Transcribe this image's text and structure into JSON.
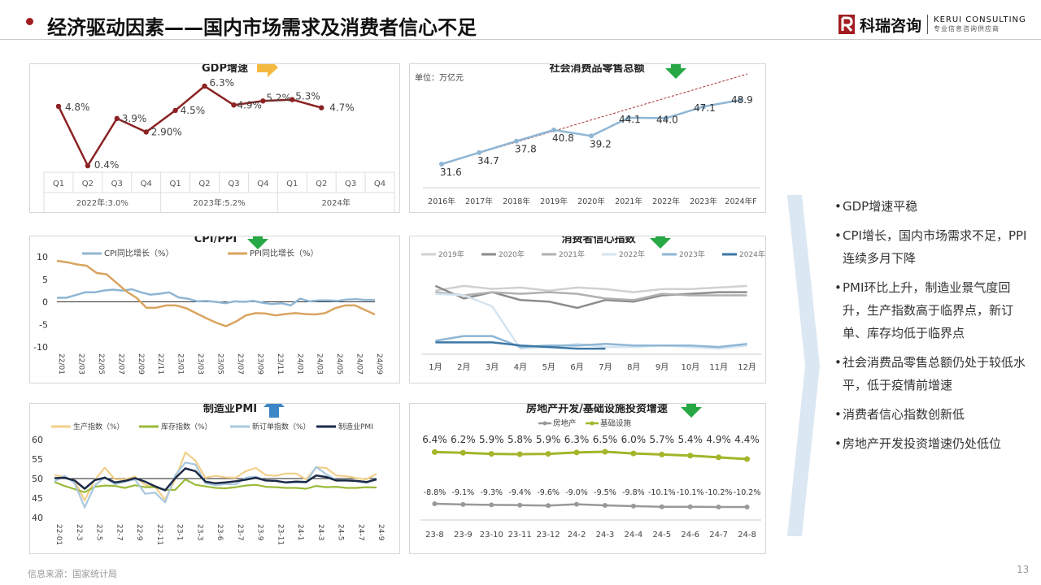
{
  "header": {
    "title": "经济驱动因素——国内市场需求及消费者信心不足",
    "logo_cn": "科瑞咨询",
    "logo_en": "KERUI CONSULTING",
    "logo_sub": "专业信息咨询供应商"
  },
  "footer": {
    "source": "信息来源：国家统计局",
    "page": "13"
  },
  "colors": {
    "accent": "#a11d21",
    "green_arrow": "#27a844",
    "blue_arrow": "#3d86c6",
    "yellow_arrow": "#f5b942"
  },
  "indicators": {
    "gdp": "yellow-right-arrow",
    "retail": "green-down-arrow",
    "cpi": "green-down-arrow",
    "confidence": "green-down-arrow",
    "pmi": "blue-up-arrow",
    "invest": "green-down-arrow"
  },
  "bullets": [
    "GDP增速平稳",
    "CPI增长，国内市场需求不足，PPI连续多月下降",
    "PMI环比上升，制造业景气度回升，生产指数高于临界点，新订单、库存均低于临界点",
    "社会消费品零售总额仍处于较低水平，低于疫情前增速",
    "消费者信心指数创新低",
    "房地产开发投资增速仍处低位"
  ],
  "chart_data": [
    {
      "id": "gdp",
      "type": "line",
      "title": "GDP增速",
      "categories": [
        "Q1",
        "Q2",
        "Q3",
        "Q4",
        "Q1",
        "Q2",
        "Q3",
        "Q4",
        "Q1",
        "Q2",
        "Q3",
        "Q4"
      ],
      "groups": [
        "2022年:3.0%",
        "2023年:5.2%",
        "2024年"
      ],
      "values": [
        4.8,
        0.4,
        3.9,
        2.9,
        4.5,
        6.3,
        4.9,
        5.2,
        5.3,
        4.7,
        null,
        null
      ],
      "labels": [
        "4.8%",
        "0.4%",
        "3.9%",
        "2.90%",
        "4.5%",
        "6.3%",
        "4.9%",
        "5.2%",
        "5.3%",
        "4.7%"
      ],
      "color": "#8b2323"
    },
    {
      "id": "retail",
      "type": "line",
      "title": "社会消费品零售总额",
      "unit_label": "单位：万亿元",
      "categories": [
        "2016年",
        "2017年",
        "2018年",
        "2019年",
        "2020年",
        "2021年",
        "2022年",
        "2023年",
        "2024年F"
      ],
      "values": [
        31.6,
        34.7,
        37.8,
        40.8,
        39.2,
        44.1,
        44.0,
        47.1,
        48.9
      ],
      "labels": [
        "31.6",
        "34.7",
        "37.8",
        "40.8",
        "39.2",
        "44.1",
        "44.0",
        "47.1",
        "48.9"
      ],
      "color": "#8fb6d4"
    },
    {
      "id": "cpi",
      "type": "line",
      "title": "CPI/PPI",
      "ylim": [
        -10,
        10
      ],
      "yticks": [
        "10",
        "5",
        "0",
        "-5",
        "-10"
      ],
      "xticks": [
        "22/01",
        "22/03",
        "22/05",
        "22/07",
        "22/09",
        "22/11",
        "23/01",
        "23/03",
        "23/05",
        "23/07",
        "23/09",
        "23/11",
        "24/01",
        "24/03",
        "24/05",
        "24/07",
        "24/09"
      ],
      "series": [
        {
          "name": "CPI同比增长（%）",
          "color": "#8fb6d4",
          "values": [
            0.9,
            0.9,
            1.5,
            2.1,
            2.1,
            2.5,
            2.7,
            2.5,
            2.8,
            2.1,
            1.6,
            1.8,
            2.1,
            1.0,
            0.7,
            0.1,
            0.2,
            0.0,
            -0.3,
            0.1,
            0.0,
            0.2,
            -0.2,
            -0.5,
            -0.3,
            -0.8,
            0.7,
            0.1,
            0.3,
            0.3,
            0.2,
            0.5,
            0.6,
            0.4,
            0.4
          ]
        },
        {
          "name": "PPI同比增长（%）",
          "color": "#d9a460",
          "values": [
            9.1,
            8.8,
            8.3,
            8.0,
            6.4,
            6.1,
            4.2,
            2.3,
            0.9,
            -1.3,
            -1.3,
            -0.8,
            -0.8,
            -1.4,
            -2.5,
            -3.6,
            -4.6,
            -5.4,
            -4.4,
            -3.0,
            -2.5,
            -2.6,
            -3.0,
            -2.7,
            -2.5,
            -2.7,
            -2.8,
            -2.5,
            -1.4,
            -0.8,
            -0.8,
            -1.8,
            -2.8
          ]
        }
      ]
    },
    {
      "id": "confidence",
      "type": "line",
      "title": "消费者信心指数",
      "categories": [
        "1月",
        "2月",
        "3月",
        "4月",
        "5月",
        "6月",
        "7月",
        "8月",
        "9月",
        "10月",
        "11月",
        "12月"
      ],
      "series": [
        {
          "name": "2019年",
          "color": "#d0d0d0",
          "values": [
            123,
            126,
            124.1,
            125,
            123,
            125,
            124,
            122,
            124,
            124,
            125,
            126
          ]
        },
        {
          "name": "2020年",
          "color": "#8c8c8c",
          "values": [
            126,
            118,
            122,
            117,
            116,
            112,
            117,
            116,
            120,
            121,
            122,
            122
          ]
        },
        {
          "name": "2021年",
          "color": "#b0b0b0",
          "values": [
            122,
            120,
            122,
            121,
            122,
            121,
            118,
            117,
            121,
            120,
            120,
            120
          ]
        },
        {
          "name": "2022年",
          "color": "#d4e4f0",
          "values": [
            121,
            120,
            113,
            86,
            87,
            89,
            87,
            87,
            88,
            87,
            86,
            88
          ]
        },
        {
          "name": "2023年",
          "color": "#8fb6d4",
          "values": [
            91,
            94,
            94,
            87,
            88,
            88,
            89,
            88,
            88,
            88,
            87,
            89
          ]
        },
        {
          "name": "2024年",
          "color": "#3d78a6",
          "values": [
            90,
            90,
            90,
            88,
            87,
            86,
            86,
            null,
            null,
            null,
            null,
            null
          ]
        }
      ]
    },
    {
      "id": "pmi",
      "type": "line",
      "title": "制造业PMI",
      "ylim": [
        40,
        60
      ],
      "yticks": [
        "60",
        "55",
        "50",
        "45",
        "40"
      ],
      "xticks": [
        "22-01",
        "22-3",
        "22-5",
        "22-7",
        "22-9",
        "22-11",
        "23-1",
        "23-3",
        "23-6",
        "23-7",
        "23-9",
        "23-11",
        "24-1",
        "24-3",
        "24-5",
        "24-7",
        "24-9"
      ],
      "series": [
        {
          "name": "生产指数（%）",
          "color": "#f2cf8a",
          "values": [
            50.9,
            50.4,
            49.5,
            44.4,
            49.7,
            52.8,
            49.8,
            49.8,
            50.5,
            48.4,
            47.8,
            44.6,
            49.8,
            56.7,
            54.6,
            50.2,
            50.7,
            50.3,
            50.2,
            51.9,
            52.7,
            50.9,
            50.7,
            51.3,
            51.3,
            49.8,
            52.9,
            52.7,
            50.8,
            50.6,
            50.1,
            49.8,
            51.2
          ]
        },
        {
          "name": "库存指数（%）",
          "color": "#9aba3a",
          "values": [
            49.1,
            48.1,
            47.3,
            46.5,
            47.9,
            48.2,
            48.1,
            47.6,
            48.3,
            47.8,
            47.8,
            47.1,
            47.1,
            49.8,
            48.4,
            48.0,
            47.6,
            47.5,
            47.8,
            48.2,
            48.4,
            47.9,
            47.8,
            47.6,
            47.6,
            47.4,
            48.1,
            47.8,
            47.9,
            47.6,
            47.6,
            47.8,
            47.7
          ]
        },
        {
          "name": "新订单指数（%）",
          "color": "#a9c8de",
          "values": [
            49.3,
            50.7,
            48.8,
            42.6,
            48.2,
            50.4,
            48.5,
            49.2,
            49.8,
            46.1,
            46.4,
            43.9,
            50.9,
            54.1,
            53.6,
            48.8,
            48.3,
            48.6,
            48.5,
            50.2,
            50.5,
            49.5,
            49.4,
            49.0,
            49.0,
            49.0,
            53.0,
            51.1,
            49.6,
            49.5,
            49.3,
            48.9,
            49.9
          ]
        },
        {
          "name": "制造业PMI",
          "color": "#1c2a48",
          "values": [
            50.1,
            50.2,
            49.5,
            47.4,
            49.6,
            50.2,
            49.0,
            49.4,
            50.1,
            49.2,
            48.0,
            47.0,
            50.1,
            52.6,
            51.9,
            49.2,
            48.8,
            49.0,
            49.3,
            49.7,
            50.2,
            49.5,
            49.4,
            49.0,
            49.2,
            49.1,
            50.8,
            50.4,
            49.5,
            49.5,
            49.4,
            49.1,
            49.8
          ]
        }
      ]
    },
    {
      "id": "invest",
      "type": "line",
      "title": "房地产开发/基础设施投资增速",
      "categories": [
        "23-8",
        "23-9",
        "23-10",
        "23-11",
        "23-12",
        "24-2",
        "24-3",
        "24-4",
        "24-5",
        "24-6",
        "24-7",
        "24-8"
      ],
      "series": [
        {
          "name": "房地产",
          "color": "#999999",
          "values": [
            -8.8,
            -9.1,
            -9.3,
            -9.4,
            -9.6,
            -9.0,
            -9.5,
            -9.8,
            -10.1,
            -10.1,
            -10.2,
            -10.2
          ],
          "labels": [
            "-8.8%",
            "-9.1%",
            "-9.3%",
            "-9.4%",
            "-9.6%",
            "-9.0%",
            "-9.5%",
            "-9.8%",
            "-10.1%",
            "-10.1%",
            "-10.2%",
            "-10.2%"
          ]
        },
        {
          "name": "基础设施",
          "color": "#a3b52a",
          "values": [
            6.4,
            6.2,
            5.9,
            5.8,
            5.9,
            6.3,
            6.5,
            6.0,
            5.7,
            5.4,
            4.9,
            4.4
          ],
          "labels": [
            "6.4%",
            "6.2%",
            "5.9%",
            "5.8%",
            "5.9%",
            "6.3%",
            "6.5%",
            "6.0%",
            "5.7%",
            "5.4%",
            "4.9%",
            "4.4%"
          ]
        }
      ]
    }
  ]
}
